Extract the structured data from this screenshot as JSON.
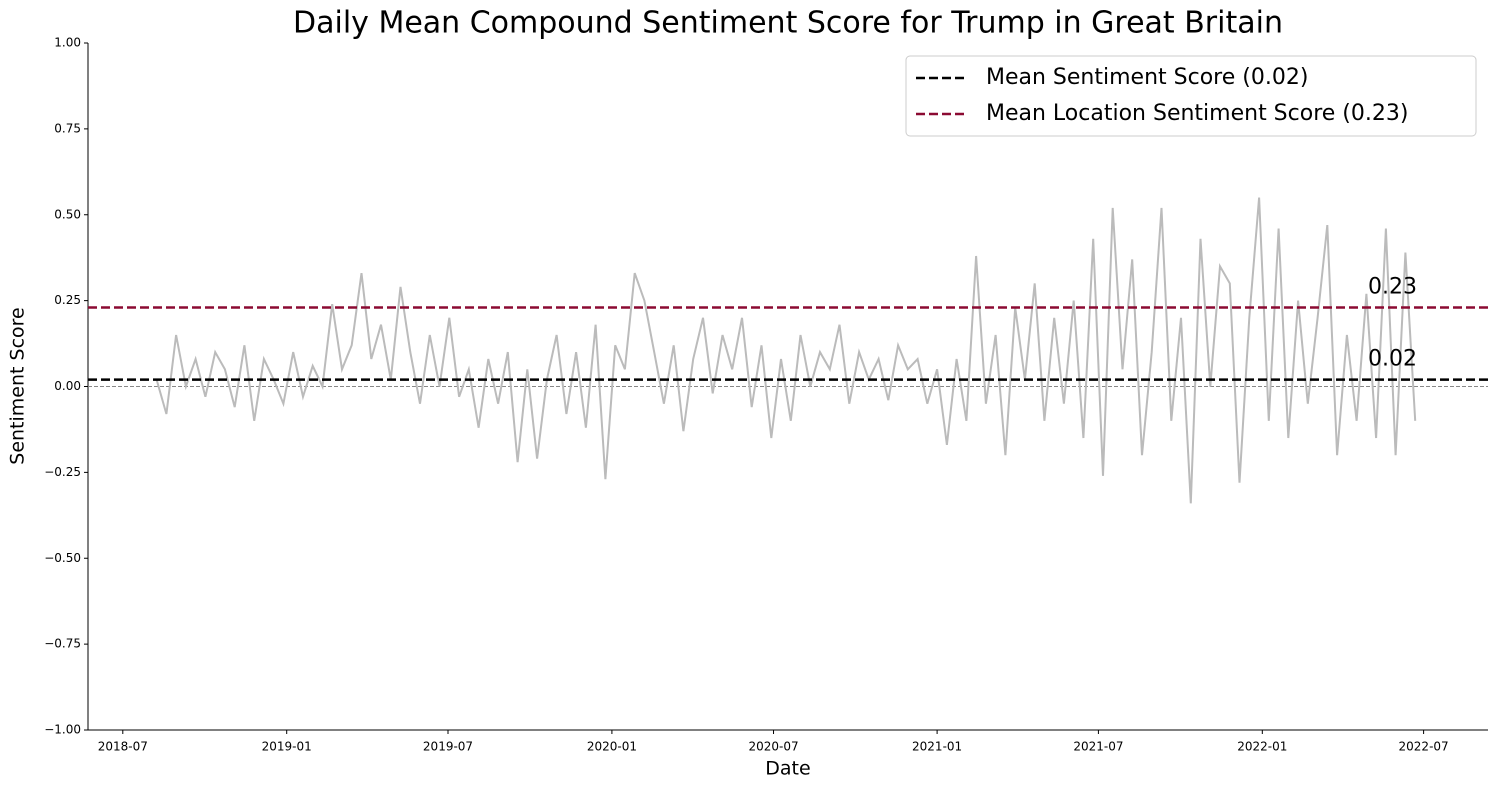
{
  "chart_data": {
    "type": "line",
    "title": "Daily Mean Compound Sentiment Score for Trump in Great Britain",
    "x_label": "Date",
    "y_label": "Sentiment Score",
    "x": [
      2018.6,
      2018.63,
      2018.66,
      2018.69,
      2018.72,
      2018.75,
      2018.78,
      2018.81,
      2018.84,
      2018.87,
      2018.9,
      2018.93,
      2018.96,
      2018.99,
      2019.02,
      2019.05,
      2019.08,
      2019.11,
      2019.14,
      2019.17,
      2019.2,
      2019.23,
      2019.26,
      2019.29,
      2019.32,
      2019.35,
      2019.38,
      2019.41,
      2019.44,
      2019.47,
      2019.5,
      2019.53,
      2019.56,
      2019.59,
      2019.62,
      2019.65,
      2019.68,
      2019.71,
      2019.74,
      2019.77,
      2019.8,
      2019.83,
      2019.86,
      2019.89,
      2019.92,
      2019.95,
      2019.98,
      2020.01,
      2020.04,
      2020.07,
      2020.1,
      2020.13,
      2020.16,
      2020.19,
      2020.22,
      2020.25,
      2020.28,
      2020.31,
      2020.34,
      2020.37,
      2020.4,
      2020.43,
      2020.46,
      2020.49,
      2020.52,
      2020.55,
      2020.58,
      2020.61,
      2020.64,
      2020.67,
      2020.7,
      2020.73,
      2020.76,
      2020.79,
      2020.82,
      2020.85,
      2020.88,
      2020.91,
      2020.94,
      2020.97,
      2021.0,
      2021.03,
      2021.06,
      2021.09,
      2021.12,
      2021.15,
      2021.18,
      2021.21,
      2021.24,
      2021.27,
      2021.3,
      2021.33,
      2021.36,
      2021.39,
      2021.42,
      2021.45,
      2021.48,
      2021.51,
      2021.54,
      2021.57,
      2021.6,
      2021.63,
      2021.66,
      2021.69,
      2021.72,
      2021.75,
      2021.78,
      2021.81,
      2021.84,
      2021.87,
      2021.9,
      2021.93,
      2021.96,
      2021.99,
      2022.02,
      2022.05,
      2022.08,
      2022.11,
      2022.14,
      2022.17,
      2022.2,
      2022.23,
      2022.26,
      2022.29,
      2022.32,
      2022.35,
      2022.38,
      2022.41,
      2022.44,
      2022.47
    ],
    "series": [
      {
        "color": "#bbbbbb",
        "values": [
          0.02,
          -0.08,
          0.15,
          0.0,
          0.08,
          -0.03,
          0.1,
          0.05,
          -0.06,
          0.12,
          -0.1,
          0.08,
          0.02,
          -0.05,
          0.1,
          -0.03,
          0.06,
          0.0,
          0.24,
          0.05,
          0.12,
          0.33,
          0.08,
          0.18,
          0.02,
          0.29,
          0.1,
          -0.05,
          0.15,
          0.0,
          0.2,
          -0.03,
          0.05,
          -0.12,
          0.08,
          -0.05,
          0.1,
          -0.22,
          0.05,
          -0.21,
          0.02,
          0.15,
          -0.08,
          0.1,
          -0.12,
          0.18,
          -0.27,
          0.12,
          0.05,
          0.33,
          0.25,
          0.1,
          -0.05,
          0.12,
          -0.13,
          0.08,
          0.2,
          -0.02,
          0.15,
          0.05,
          0.2,
          -0.06,
          0.12,
          -0.15,
          0.08,
          -0.1,
          0.15,
          0.0,
          0.1,
          0.05,
          0.18,
          -0.05,
          0.1,
          0.02,
          0.08,
          -0.04,
          0.12,
          0.05,
          0.08,
          -0.05,
          0.05,
          -0.17,
          0.08,
          -0.1,
          0.38,
          -0.05,
          0.15,
          -0.2,
          0.23,
          0.02,
          0.3,
          -0.1,
          0.2,
          -0.05,
          0.25,
          -0.15,
          0.43,
          -0.26,
          0.52,
          0.05,
          0.37,
          -0.2,
          0.1,
          0.52,
          -0.1,
          0.2,
          -0.34,
          0.43,
          0.0,
          0.35,
          0.3,
          -0.28,
          0.2,
          0.55,
          -0.1,
          0.46,
          -0.15,
          0.25,
          -0.05,
          0.2,
          0.47,
          -0.2,
          0.15,
          -0.1,
          0.27,
          -0.15,
          0.46,
          -0.2,
          0.39,
          -0.1
        ]
      }
    ],
    "hlines": [
      {
        "name": "Mean Sentiment Score (0.02)",
        "value": 0.02,
        "label": "0.02",
        "color": "#000000"
      },
      {
        "name": "Mean Location Sentiment Score (0.23)",
        "value": 0.23,
        "label": "0.23",
        "color": "#8b0a32"
      }
    ],
    "zero_line": true,
    "legend": "upper right",
    "xlim": [
      2018.389,
      2022.694
    ],
    "xticks": [
      {
        "value": 2018.496,
        "label": "2018-07"
      },
      {
        "value": 2019.0,
        "label": "2019-01"
      },
      {
        "value": 2019.496,
        "label": "2019-07"
      },
      {
        "value": 2020.0,
        "label": "2020-01"
      },
      {
        "value": 2020.497,
        "label": "2020-07"
      },
      {
        "value": 2021.0,
        "label": "2021-01"
      },
      {
        "value": 2021.496,
        "label": "2021-07"
      },
      {
        "value": 2022.0,
        "label": "2022-01"
      },
      {
        "value": 2022.496,
        "label": "2022-07"
      }
    ],
    "ylim": [
      -1,
      1
    ],
    "yticks": [
      {
        "value": -1,
        "label": "−1.00"
      },
      {
        "value": -0.75,
        "label": "−0.75"
      },
      {
        "value": -0.5,
        "label": "−0.50"
      },
      {
        "value": -0.25,
        "label": "−0.25"
      },
      {
        "value": 0,
        "label": "0.00"
      },
      {
        "value": 0.25,
        "label": "0.25"
      },
      {
        "value": 0.5,
        "label": "0.50"
      },
      {
        "value": 0.75,
        "label": "0.75"
      },
      {
        "value": 1,
        "label": "1.00"
      }
    ]
  }
}
